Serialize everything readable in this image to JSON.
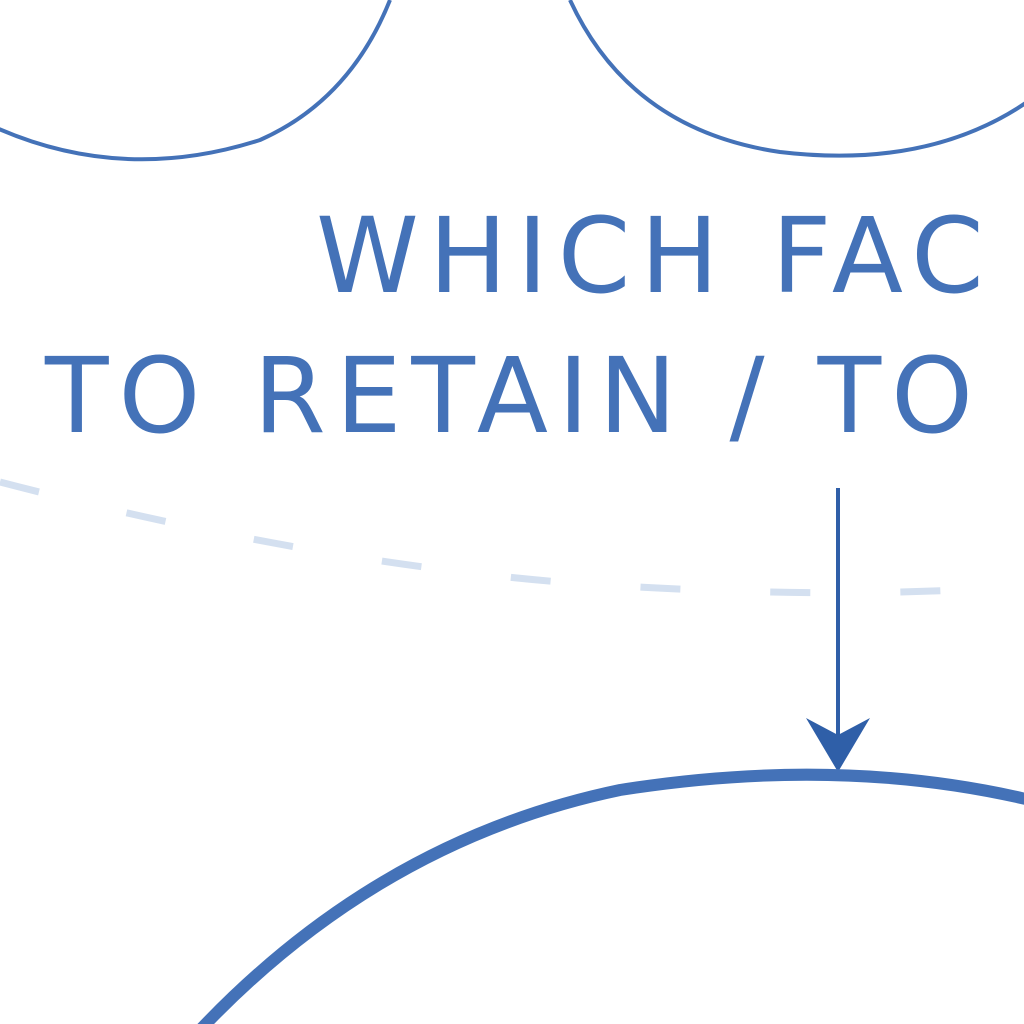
{
  "caption": {
    "line1": "WHICH FAC",
    "line2": "TO RETAIN / TO"
  }
}
